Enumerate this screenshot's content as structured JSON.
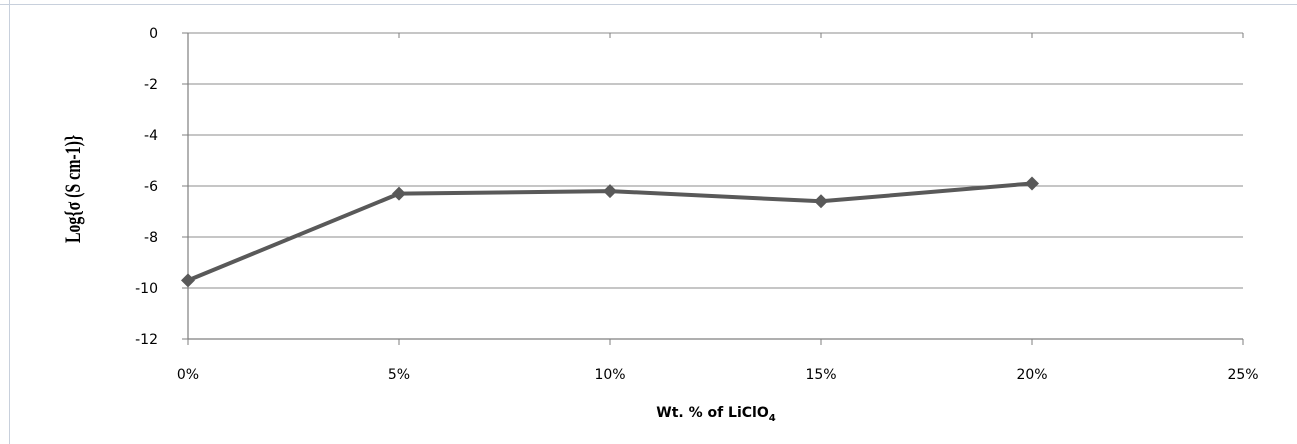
{
  "chart_data": {
    "type": "line",
    "x": [
      "0%",
      "5%",
      "10%",
      "15%",
      "20%"
    ],
    "x_values": [
      0,
      5,
      10,
      15,
      20
    ],
    "values": [
      -9.7,
      -6.3,
      -6.2,
      -6.6,
      -5.9
    ],
    "xlim": [
      0,
      25
    ],
    "ylim": [
      -12,
      0
    ],
    "x_ticks": [
      "0%",
      "5%",
      "10%",
      "15%",
      "20%",
      "25%"
    ],
    "y_ticks": [
      "0",
      "-2",
      "-4",
      "-6",
      "-8",
      "-10",
      "-12"
    ],
    "x_tick_values": [
      0,
      5,
      10,
      15,
      20,
      25
    ],
    "y_tick_values": [
      0,
      -2,
      -4,
      -6,
      -8,
      -10,
      -12
    ],
    "xlabel_main": "Wt. % of LiClO",
    "xlabel_subscript": "4",
    "ylabel": "Log{σ (S cm-1)}",
    "grid": "horizontal",
    "legend": "none",
    "colors": {
      "series": "#595959",
      "grid": "#8c8c8c",
      "axis": "#7f7f7f",
      "text": "#000000"
    }
  }
}
